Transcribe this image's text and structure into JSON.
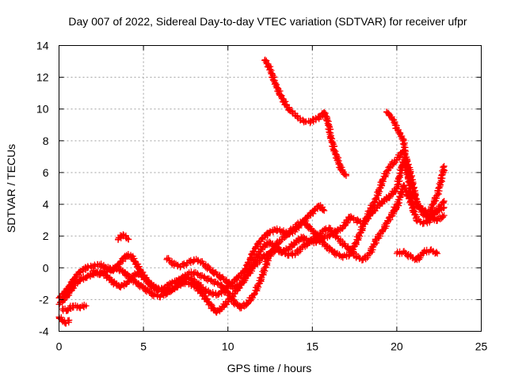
{
  "chart_data": {
    "type": "scatter",
    "title": "Day 007 of 2022, Sidereal Day-to-day VTEC variation (SDTVAR) for receiver ufpr",
    "xlabel": "GPS time / hours",
    "ylabel": "SDTVAR / TECUs",
    "xlim": [
      0,
      25
    ],
    "ylim": [
      -4,
      14
    ],
    "x_ticks": [
      0,
      5,
      10,
      15,
      20,
      25
    ],
    "y_ticks": [
      -4,
      -2,
      0,
      2,
      4,
      6,
      8,
      10,
      12,
      14
    ],
    "grid": true,
    "marker": "+",
    "colors": {
      "series": "#ff0000",
      "grid": "#a0a0a0",
      "axis": "#000000"
    },
    "series": [
      {
        "points": [
          [
            0.0,
            -1.9
          ],
          [
            0.3,
            -1.6
          ],
          [
            0.6,
            -1.2
          ],
          [
            0.9,
            -0.7
          ],
          [
            1.2,
            -0.3
          ],
          [
            1.6,
            0.0
          ],
          [
            2.0,
            0.1
          ],
          [
            2.4,
            0.2
          ],
          [
            2.8,
            0.0
          ],
          [
            3.2,
            -0.2
          ],
          [
            3.6,
            0.3
          ],
          [
            4.0,
            0.8
          ],
          [
            4.3,
            0.7
          ],
          [
            4.6,
            0.2
          ],
          [
            5.0,
            -0.5
          ],
          [
            5.4,
            -1.1
          ],
          [
            5.8,
            -1.4
          ],
          [
            6.2,
            -1.3
          ],
          [
            6.6,
            -1.0
          ],
          [
            7.0,
            -0.8
          ],
          [
            7.4,
            -0.6
          ],
          [
            7.8,
            -0.7
          ],
          [
            8.2,
            -1.0
          ],
          [
            8.6,
            -1.4
          ],
          [
            9.0,
            -1.6
          ],
          [
            9.4,
            -1.7
          ],
          [
            9.8,
            -1.4
          ],
          [
            10.2,
            -1.0
          ],
          [
            10.6,
            -0.6
          ],
          [
            11.0,
            -0.2
          ],
          [
            11.3,
            0.5
          ],
          [
            11.6,
            1.2
          ],
          [
            12.0,
            1.8
          ],
          [
            12.4,
            2.2
          ],
          [
            12.8,
            2.4
          ],
          [
            13.2,
            2.3
          ],
          [
            13.6,
            2.1
          ],
          [
            14.0,
            2.4
          ],
          [
            14.3,
            2.7
          ],
          [
            14.7,
            3.2
          ],
          [
            15.1,
            3.6
          ],
          [
            15.4,
            3.9
          ],
          [
            15.7,
            3.6
          ]
        ]
      },
      {
        "points": [
          [
            0.0,
            -2.3
          ],
          [
            0.3,
            -2.0
          ],
          [
            0.6,
            -1.6
          ],
          [
            0.9,
            -1.1
          ],
          [
            1.2,
            -0.8
          ],
          [
            1.6,
            -0.6
          ],
          [
            2.0,
            -0.4
          ],
          [
            2.4,
            -0.3
          ],
          [
            2.8,
            -0.5
          ],
          [
            3.2,
            -0.9
          ],
          [
            3.6,
            -1.2
          ],
          [
            4.0,
            -1.0
          ],
          [
            4.3,
            -0.6
          ],
          [
            4.7,
            -0.3
          ],
          [
            5.0,
            -0.6
          ],
          [
            5.4,
            -1.0
          ],
          [
            5.8,
            -1.3
          ],
          [
            6.2,
            -1.5
          ],
          [
            6.6,
            -1.4
          ],
          [
            7.0,
            -1.2
          ],
          [
            7.4,
            -0.9
          ],
          [
            7.8,
            -1.0
          ],
          [
            8.2,
            -1.3
          ],
          [
            8.6,
            -1.8
          ],
          [
            9.0,
            -2.4
          ],
          [
            9.3,
            -2.8
          ],
          [
            9.6,
            -2.6
          ],
          [
            10.0,
            -2.1
          ],
          [
            10.4,
            -1.6
          ],
          [
            10.8,
            -1.0
          ],
          [
            11.2,
            -0.3
          ],
          [
            11.6,
            0.5
          ],
          [
            12.0,
            1.2
          ],
          [
            12.4,
            1.6
          ],
          [
            12.8,
            1.4
          ],
          [
            13.2,
            1.0
          ],
          [
            13.6,
            1.2
          ],
          [
            14.0,
            1.6
          ],
          [
            14.4,
            1.9
          ],
          [
            14.8,
            1.7
          ],
          [
            15.2,
            1.6
          ],
          [
            15.6,
            1.9
          ],
          [
            16.0,
            2.0
          ],
          [
            16.4,
            2.3
          ],
          [
            16.8,
            2.5
          ],
          [
            17.2,
            3.2
          ],
          [
            17.6,
            3.0
          ],
          [
            18.0,
            2.8
          ],
          [
            18.4,
            3.3
          ],
          [
            18.8,
            3.8
          ],
          [
            19.2,
            4.2
          ],
          [
            19.6,
            4.5
          ],
          [
            20.0,
            5.0
          ],
          [
            20.4,
            6.8
          ],
          [
            20.8,
            5.5
          ],
          [
            21.2,
            4.0
          ],
          [
            21.6,
            3.6
          ],
          [
            22.0,
            3.4
          ],
          [
            22.4,
            3.6
          ],
          [
            22.8,
            3.8
          ]
        ]
      },
      {
        "points": [
          [
            0.2,
            -2.6
          ],
          [
            0.5,
            -2.7
          ],
          [
            0.8,
            -2.4
          ],
          [
            1.2,
            -2.5
          ],
          [
            1.6,
            -2.4
          ]
        ]
      },
      {
        "points": [
          [
            0.0,
            -3.1
          ],
          [
            0.2,
            -3.3
          ],
          [
            0.4,
            -3.5
          ],
          [
            0.6,
            -3.3
          ]
        ]
      },
      {
        "points": [
          [
            3.5,
            1.8
          ],
          [
            3.8,
            2.1
          ],
          [
            4.1,
            1.8
          ]
        ]
      },
      {
        "points": [
          [
            2.0,
            -0.2
          ],
          [
            2.4,
            -0.4
          ],
          [
            2.8,
            -0.2
          ],
          [
            3.2,
            0.0
          ],
          [
            3.6,
            -0.1
          ],
          [
            4.0,
            -0.4
          ],
          [
            4.4,
            -0.8
          ],
          [
            4.8,
            -1.1
          ],
          [
            5.2,
            -1.4
          ],
          [
            5.6,
            -1.7
          ],
          [
            6.0,
            -1.8
          ],
          [
            6.4,
            -1.6
          ],
          [
            6.8,
            -1.3
          ],
          [
            7.2,
            -0.8
          ],
          [
            7.6,
            -0.4
          ],
          [
            8.0,
            -0.3
          ],
          [
            8.4,
            -0.5
          ],
          [
            8.8,
            -0.7
          ],
          [
            9.2,
            -0.9
          ],
          [
            9.6,
            -1.1
          ],
          [
            10.0,
            -1.6
          ],
          [
            10.4,
            -2.2
          ],
          [
            10.8,
            -2.5
          ],
          [
            11.2,
            -2.2
          ],
          [
            11.6,
            -1.6
          ],
          [
            12.0,
            -0.6
          ],
          [
            12.4,
            0.6
          ],
          [
            12.8,
            1.4
          ],
          [
            13.2,
            1.8
          ],
          [
            13.6,
            2.2
          ],
          [
            14.0,
            2.6
          ],
          [
            14.4,
            2.9
          ],
          [
            14.8,
            2.6
          ],
          [
            15.2,
            2.1
          ],
          [
            15.6,
            1.6
          ],
          [
            16.0,
            1.2
          ],
          [
            16.4,
            0.9
          ],
          [
            16.8,
            0.7
          ],
          [
            17.2,
            0.8
          ],
          [
            17.6,
            1.6
          ],
          [
            18.0,
            2.6
          ],
          [
            18.4,
            3.6
          ],
          [
            18.8,
            4.4
          ],
          [
            19.2,
            5.6
          ],
          [
            19.6,
            6.4
          ],
          [
            20.0,
            6.8
          ],
          [
            20.4,
            7.4
          ],
          [
            20.8,
            6.0
          ],
          [
            21.2,
            4.0
          ],
          [
            21.6,
            3.4
          ],
          [
            22.0,
            3.1
          ],
          [
            22.4,
            3.0
          ],
          [
            22.8,
            3.3
          ]
        ]
      },
      {
        "points": [
          [
            6.4,
            0.6
          ],
          [
            6.8,
            0.2
          ],
          [
            7.2,
            0.1
          ],
          [
            7.6,
            0.3
          ],
          [
            8.0,
            0.5
          ],
          [
            8.4,
            0.4
          ],
          [
            8.8,
            0.0
          ],
          [
            9.2,
            -0.3
          ],
          [
            9.6,
            -0.6
          ],
          [
            10.0,
            -0.9
          ],
          [
            10.4,
            -1.3
          ],
          [
            10.8,
            -1.0
          ],
          [
            11.2,
            -0.4
          ],
          [
            11.6,
            0.2
          ],
          [
            12.0,
            0.6
          ],
          [
            12.4,
            0.9
          ],
          [
            12.8,
            1.1
          ],
          [
            13.2,
            1.0
          ],
          [
            13.6,
            0.8
          ],
          [
            14.0,
            0.9
          ],
          [
            14.4,
            1.3
          ],
          [
            14.8,
            1.6
          ],
          [
            15.2,
            1.9
          ],
          [
            15.6,
            2.3
          ],
          [
            16.0,
            2.5
          ],
          [
            16.4,
            2.0
          ],
          [
            16.8,
            1.5
          ],
          [
            17.2,
            1.2
          ],
          [
            17.6,
            0.7
          ],
          [
            18.0,
            0.5
          ],
          [
            18.4,
            0.9
          ],
          [
            18.8,
            1.8
          ],
          [
            19.2,
            2.4
          ],
          [
            19.6,
            3.2
          ],
          [
            20.0,
            3.8
          ],
          [
            20.4,
            5.2
          ],
          [
            20.8,
            4.2
          ],
          [
            21.2,
            3.0
          ],
          [
            21.6,
            2.8
          ],
          [
            22.0,
            3.0
          ],
          [
            22.4,
            3.6
          ],
          [
            22.8,
            4.2
          ]
        ]
      },
      {
        "points": [
          [
            12.2,
            13.1
          ],
          [
            12.5,
            12.5
          ],
          [
            12.8,
            11.6
          ],
          [
            13.1,
            10.9
          ],
          [
            13.4,
            10.3
          ],
          [
            13.7,
            9.9
          ],
          [
            14.0,
            9.6
          ],
          [
            14.3,
            9.3
          ],
          [
            14.6,
            9.2
          ],
          [
            14.9,
            9.2
          ],
          [
            15.2,
            9.4
          ],
          [
            15.5,
            9.5
          ],
          [
            15.7,
            9.8
          ],
          [
            15.9,
            9.3
          ],
          [
            16.1,
            8.2
          ],
          [
            16.3,
            7.4
          ],
          [
            16.5,
            6.8
          ],
          [
            16.7,
            6.2
          ],
          [
            16.9,
            5.9
          ],
          [
            17.0,
            5.8
          ]
        ]
      },
      {
        "points": [
          [
            19.4,
            9.8
          ],
          [
            19.6,
            9.6
          ],
          [
            19.8,
            9.3
          ],
          [
            20.0,
            8.8
          ],
          [
            20.2,
            8.4
          ],
          [
            20.4,
            8.0
          ],
          [
            20.5,
            7.1
          ],
          [
            20.6,
            6.5
          ],
          [
            20.7,
            5.6
          ],
          [
            20.8,
            4.8
          ],
          [
            20.9,
            4.2
          ],
          [
            21.0,
            3.6
          ]
        ]
      },
      {
        "points": [
          [
            20.0,
            0.9
          ],
          [
            20.4,
            1.0
          ],
          [
            20.8,
            0.7
          ],
          [
            21.2,
            0.5
          ],
          [
            21.6,
            1.0
          ],
          [
            22.0,
            1.1
          ],
          [
            22.4,
            0.9
          ]
        ]
      },
      {
        "points": [
          [
            21.8,
            3.2
          ],
          [
            22.0,
            3.6
          ],
          [
            22.2,
            4.2
          ],
          [
            22.4,
            4.6
          ],
          [
            22.6,
            5.4
          ],
          [
            22.8,
            6.4
          ]
        ]
      },
      {
        "points": [
          [
            19.8,
            3.6
          ],
          [
            19.9,
            3.8
          ]
        ]
      }
    ]
  }
}
